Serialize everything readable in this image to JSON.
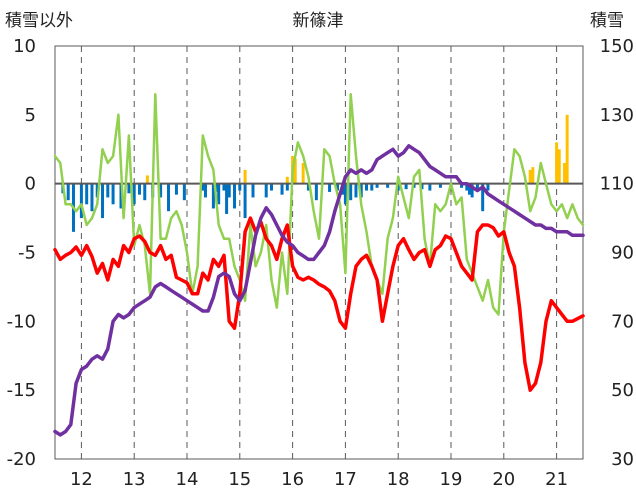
{
  "chart_data": {
    "type": "line",
    "title": "新篠津",
    "ylabel_left": "積雪以外",
    "ylabel_right": "積雪",
    "x_ticks": [
      "12",
      "13",
      "14",
      "15",
      "16",
      "17",
      "18",
      "19",
      "20",
      "21"
    ],
    "x_range": [
      11.5,
      21.5
    ],
    "ylim_left": [
      -20,
      10
    ],
    "yticks_left": [
      10,
      5,
      0,
      -5,
      -10,
      -15,
      -20
    ],
    "ylim_right": [
      30,
      150
    ],
    "yticks_right": [
      150,
      130,
      110,
      90,
      70,
      50,
      30
    ],
    "grid": "dashed-vertical",
    "colors": {
      "red": "#ff0000",
      "green": "#92d050",
      "purple": "#7030a0",
      "blue": "#0070c0",
      "orange": "#ffc000",
      "zero_line": "#595959"
    },
    "series": [
      {
        "axis": "left",
        "color": "red",
        "x": [
          11.5,
          11.6,
          11.7,
          11.8,
          11.9,
          12.0,
          12.1,
          12.2,
          12.3,
          12.4,
          12.5,
          12.6,
          12.7,
          12.8,
          12.9,
          13.0,
          13.1,
          13.2,
          13.3,
          13.4,
          13.5,
          13.6,
          13.7,
          13.8,
          13.9,
          14.0,
          14.1,
          14.2,
          14.3,
          14.4,
          14.5,
          14.6,
          14.7,
          14.8,
          14.9,
          15.0,
          15.1,
          15.2,
          15.3,
          15.4,
          15.5,
          15.6,
          15.7,
          15.8,
          15.9,
          16.0,
          16.1,
          16.2,
          16.3,
          16.4,
          16.5,
          16.6,
          16.7,
          16.8,
          16.9,
          17.0,
          17.1,
          17.2,
          17.3,
          17.4,
          17.5,
          17.6,
          17.7,
          17.8,
          17.9,
          18.0,
          18.1,
          18.2,
          18.3,
          18.4,
          18.5,
          18.6,
          18.7,
          18.8,
          18.9,
          19.0,
          19.1,
          19.2,
          19.3,
          19.4,
          19.5,
          19.6,
          19.7,
          19.8,
          19.9,
          20.0,
          20.1,
          20.2,
          20.3,
          20.4,
          20.5,
          20.6,
          20.7,
          20.8,
          20.9,
          21.0,
          21.1,
          21.2,
          21.3,
          21.4,
          21.5
        ],
        "values": [
          -4.8,
          -5.5,
          -5.2,
          -5.0,
          -4.6,
          -5.2,
          -4.5,
          -5.3,
          -6.5,
          -5.8,
          -7.0,
          -5.5,
          -6.0,
          -4.5,
          -5.0,
          -4.0,
          -3.8,
          -4.2,
          -5.0,
          -5.2,
          -4.5,
          -5.5,
          -5.2,
          -6.8,
          -7.0,
          -7.2,
          -8.0,
          -8.0,
          -6.5,
          -7.0,
          -5.5,
          -6.0,
          -5.2,
          -10.0,
          -10.5,
          -8.0,
          -3.5,
          -2.5,
          -3.5,
          -2.8,
          -4.0,
          -4.5,
          -5.5,
          -4.0,
          -3.0,
          -6.0,
          -6.8,
          -7.0,
          -6.8,
          -7.0,
          -7.3,
          -7.5,
          -7.8,
          -8.5,
          -10.0,
          -10.5,
          -8.0,
          -6.0,
          -5.5,
          -5.2,
          -6.0,
          -7.0,
          -10.0,
          -8.0,
          -6.0,
          -4.5,
          -4.0,
          -4.8,
          -5.5,
          -5.0,
          -4.8,
          -6.0,
          -4.8,
          -4.5,
          -3.8,
          -4.0,
          -5.0,
          -6.0,
          -6.5,
          -7.0,
          -3.5,
          -3.0,
          -3.0,
          -3.2,
          -3.8,
          -3.5,
          -5.0,
          -6.0,
          -9.0,
          -13.0,
          -15.0,
          -14.5,
          -13.0,
          -10.0,
          -8.5,
          -9.0,
          -9.5,
          -10.0,
          -10.0,
          -9.8,
          -9.6
        ]
      },
      {
        "axis": "left",
        "color": "green",
        "x": [
          11.5,
          11.6,
          11.7,
          11.8,
          11.9,
          12.0,
          12.1,
          12.2,
          12.3,
          12.4,
          12.5,
          12.6,
          12.7,
          12.8,
          12.9,
          13.0,
          13.1,
          13.2,
          13.3,
          13.4,
          13.5,
          13.6,
          13.7,
          13.8,
          13.9,
          14.0,
          14.1,
          14.2,
          14.3,
          14.4,
          14.5,
          14.6,
          14.7,
          14.8,
          14.9,
          15.0,
          15.1,
          15.2,
          15.3,
          15.4,
          15.5,
          15.6,
          15.7,
          15.8,
          15.9,
          16.0,
          16.1,
          16.2,
          16.3,
          16.4,
          16.5,
          16.6,
          16.7,
          16.8,
          16.9,
          17.0,
          17.1,
          17.2,
          17.3,
          17.4,
          17.5,
          17.6,
          17.7,
          17.8,
          17.9,
          18.0,
          18.1,
          18.2,
          18.3,
          18.4,
          18.5,
          18.6,
          18.7,
          18.8,
          18.9,
          19.0,
          19.1,
          19.2,
          19.3,
          19.4,
          19.5,
          19.6,
          19.7,
          19.8,
          19.9,
          20.0,
          20.1,
          20.2,
          20.3,
          20.4,
          20.5,
          20.6,
          20.7,
          20.8,
          20.9,
          21.0,
          21.1,
          21.2,
          21.3,
          21.4,
          21.5
        ],
        "values": [
          2.0,
          1.5,
          -1.5,
          -1.5,
          -2.0,
          -1.5,
          -3.0,
          -2.5,
          -1.5,
          2.5,
          1.5,
          2.0,
          5.0,
          -2.5,
          3.5,
          -4.5,
          -3.0,
          -4.5,
          -8.0,
          6.5,
          -4.0,
          -4.0,
          -2.5,
          -2.0,
          -3.0,
          -5.0,
          -8.0,
          -6.0,
          3.5,
          2.0,
          1.0,
          -3.0,
          -4.0,
          -4.0,
          -6.0,
          -7.0,
          -8.5,
          -3.0,
          -6.0,
          -5.0,
          -3.0,
          -7.0,
          -9.0,
          -5.0,
          -8.0,
          1.0,
          3.0,
          2.0,
          0.5,
          -2.0,
          -4.0,
          2.5,
          2.0,
          0.0,
          -1.5,
          -6.5,
          6.5,
          2.0,
          -1.5,
          -3.5,
          -6.0,
          -7.0,
          -8.0,
          -4.0,
          -2.5,
          0.5,
          -1.0,
          -2.5,
          0.5,
          1.0,
          -4.0,
          -6.0,
          -1.5,
          -2.0,
          -1.5,
          0.0,
          -1.5,
          -1.0,
          -5.5,
          -6.5,
          -7.5,
          -8.5,
          -7.0,
          -9.0,
          -9.5,
          -3.5,
          -0.5,
          2.5,
          2.0,
          0.5,
          -2.0,
          -1.0,
          1.5,
          0.0,
          -1.5,
          -2.0,
          -1.5,
          -2.5,
          -1.5,
          -2.5,
          -3.0
        ]
      },
      {
        "axis": "right",
        "color": "purple",
        "x": [
          11.5,
          11.6,
          11.7,
          11.8,
          11.9,
          12.0,
          12.1,
          12.2,
          12.3,
          12.4,
          12.5,
          12.6,
          12.7,
          12.8,
          12.9,
          13.0,
          13.1,
          13.2,
          13.3,
          13.4,
          13.5,
          13.6,
          13.7,
          13.8,
          13.9,
          14.0,
          14.1,
          14.2,
          14.3,
          14.4,
          14.5,
          14.6,
          14.7,
          14.8,
          14.9,
          15.0,
          15.1,
          15.2,
          15.3,
          15.4,
          15.5,
          15.6,
          15.7,
          15.8,
          15.9,
          16.0,
          16.1,
          16.2,
          16.3,
          16.4,
          16.5,
          16.6,
          16.7,
          16.8,
          16.9,
          17.0,
          17.1,
          17.2,
          17.3,
          17.4,
          17.5,
          17.6,
          17.7,
          17.8,
          17.9,
          18.0,
          18.1,
          18.2,
          18.3,
          18.4,
          18.5,
          18.6,
          18.7,
          18.8,
          18.9,
          19.0,
          19.1,
          19.2,
          19.3,
          19.4,
          19.5,
          19.6,
          19.7,
          19.8,
          19.9,
          20.0,
          20.1,
          20.2,
          20.3,
          20.4,
          20.5,
          20.6,
          20.7,
          20.8,
          20.9,
          21.0,
          21.1,
          21.2,
          21.3,
          21.4,
          21.5
        ],
        "values": [
          38,
          37,
          38,
          40,
          52,
          56,
          57,
          59,
          60,
          59,
          62,
          70,
          72,
          71,
          72,
          74,
          75,
          76,
          77,
          80,
          81,
          80,
          79,
          78,
          77,
          76,
          75,
          74,
          73,
          73,
          77,
          83,
          84,
          83,
          78,
          76,
          79,
          87,
          95,
          100,
          103,
          101,
          98,
          95,
          93,
          92,
          90,
          89,
          88,
          88,
          90,
          92,
          96,
          102,
          107,
          112,
          114,
          113,
          114,
          113,
          114,
          117,
          118,
          119,
          120,
          118,
          119,
          121,
          120,
          119,
          117,
          115,
          114,
          113,
          112,
          112,
          112,
          110,
          110,
          109,
          108,
          109,
          107,
          106,
          105,
          104,
          103,
          102,
          101,
          100,
          99,
          98,
          98,
          97,
          97,
          96,
          96,
          96,
          95,
          95,
          95
        ]
      }
    ],
    "bars_blue": {
      "axis": "left",
      "color": "blue",
      "x": [
        11.65,
        11.75,
        11.85,
        12.0,
        12.1,
        12.2,
        12.3,
        12.4,
        12.5,
        12.6,
        12.75,
        12.9,
        13.0,
        13.1,
        13.2,
        13.35,
        13.5,
        13.65,
        13.8,
        13.95,
        14.3,
        14.35,
        14.5,
        14.55,
        14.6,
        14.7,
        14.75,
        14.8,
        14.9,
        15.0,
        15.1,
        15.25,
        15.5,
        15.6,
        15.8,
        15.9,
        16.3,
        16.45,
        16.7,
        16.85,
        16.95,
        17.0,
        17.1,
        17.2,
        17.3,
        17.4,
        17.5,
        17.6,
        17.8,
        18.0,
        18.15,
        18.3,
        18.45,
        18.6,
        18.8,
        19.2,
        19.3,
        19.35,
        19.4,
        19.5,
        19.6,
        19.7
      ],
      "values": [
        -0.7,
        -1.2,
        -3.5,
        -2.5,
        -1.5,
        -2.0,
        -1.0,
        -2.5,
        -1.0,
        -1.5,
        -1.8,
        -0.7,
        -1.5,
        -0.8,
        -1.2,
        -1.0,
        -1.0,
        -2.0,
        -0.8,
        -1.2,
        -0.5,
        -1.0,
        -1.8,
        -0.6,
        -1.5,
        -0.5,
        -2.2,
        -1.0,
        -1.8,
        -0.5,
        -2.5,
        -1.0,
        -1.0,
        -0.5,
        -0.8,
        -0.5,
        -0.5,
        -1.2,
        -0.6,
        -0.5,
        -0.8,
        -1.5,
        -1.2,
        -1.0,
        -1.0,
        -0.5,
        -0.5,
        -0.3,
        -0.3,
        -0.5,
        -0.4,
        -0.3,
        -0.4,
        -0.5,
        -0.3,
        -0.3,
        -0.5,
        -0.8,
        -1.0,
        -0.5,
        -2.0,
        -0.5
      ]
    },
    "bars_orange": {
      "axis": "left",
      "color": "orange",
      "x": [
        13.25,
        15.1,
        15.9,
        16.0,
        16.05,
        16.2,
        20.5,
        20.55,
        21.0,
        21.05,
        21.15,
        21.2
      ],
      "values": [
        0.6,
        1.0,
        0.5,
        2.0,
        1.8,
        1.5,
        1.0,
        1.2,
        3.0,
        2.5,
        1.5,
        5.0
      ]
    }
  }
}
